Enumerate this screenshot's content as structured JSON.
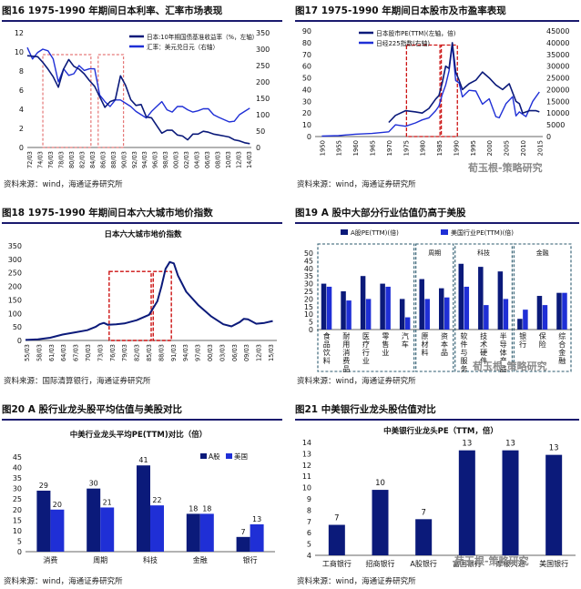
{
  "colors": {
    "navy": "#0b1a7a",
    "blue": "#1f2fd6",
    "pink": "#e05a5a",
    "red": "#cc1111",
    "teal": "#2b5a6e",
    "title": "#1a1a6e"
  },
  "watermark": "荀玉根-策略研究",
  "chart_data": [
    {
      "id": "fig16",
      "type": "line",
      "title": "图16   1975-1990 年期间日本利率、汇率市场表现",
      "source": "资料来源：wind，海通证券研究所",
      "legend": [
        "日本:10年期国债基准收益率（%，左轴）",
        "汇率：美元兑日元（右轴）"
      ],
      "x_ticks": [
        "72/03",
        "74/03",
        "76/03",
        "78/03",
        "80/03",
        "82/03",
        "84/03",
        "86/03",
        "88/03",
        "90/03",
        "92/03",
        "94/03",
        "96/03",
        "98/03",
        "00/03",
        "02/03",
        "04/03",
        "06/03",
        "08/03",
        "10/03",
        "12/03",
        "14/03"
      ],
      "ylim_left": [
        0,
        12
      ],
      "yticks_left": [
        "0",
        "2",
        "4",
        "6",
        "8",
        "10",
        "12"
      ],
      "ylim_right": [
        0,
        350
      ],
      "yticks_right": [
        "0",
        "50",
        "100",
        "150",
        "200",
        "250",
        "300",
        "350"
      ],
      "series": [
        {
          "name": "日本:10年期国债基准收益率",
          "axis": "left",
          "color": "#0b1a7a",
          "t": [
            1972,
            1974,
            1975,
            1976,
            1977,
            1978,
            1979,
            1980,
            1981,
            1982,
            1983,
            1984,
            1985,
            1986,
            1987,
            1988,
            1989,
            1990,
            1991,
            1992,
            1993,
            1994,
            1995,
            1996,
            1997,
            1998,
            1999,
            2000,
            2001,
            2002,
            2003,
            2004,
            2005,
            2006,
            2007,
            2008,
            2009,
            2010,
            2011,
            2012,
            2013,
            2014,
            2015
          ],
          "v": [
            9.6,
            9.5,
            8.9,
            8.2,
            7.4,
            6.3,
            8.2,
            9.2,
            8.5,
            8.2,
            7.7,
            7.0,
            6.4,
            5.3,
            4.2,
            4.8,
            5.0,
            7.5,
            6.5,
            5.0,
            4.4,
            4.5,
            3.2,
            3.1,
            2.3,
            1.5,
            1.8,
            1.8,
            1.3,
            1.2,
            0.8,
            1.4,
            1.4,
            1.7,
            1.6,
            1.4,
            1.3,
            1.2,
            1.1,
            0.8,
            0.7,
            0.5,
            0.4
          ]
        },
        {
          "name": "汇率：美元兑日元",
          "axis": "right",
          "color": "#1f2fd6",
          "t": [
            1972,
            1973,
            1974,
            1975,
            1976,
            1977,
            1978,
            1979,
            1980,
            1981,
            1982,
            1983,
            1984,
            1985,
            1986,
            1987,
            1988,
            1989,
            1990,
            1991,
            1992,
            1993,
            1994,
            1995,
            1996,
            1997,
            1998,
            1999,
            2000,
            2001,
            2002,
            2003,
            2004,
            2005,
            2006,
            2007,
            2008,
            2009,
            2010,
            2011,
            2012,
            2013,
            2014,
            2015
          ],
          "v": [
            305,
            270,
            290,
            300,
            295,
            270,
            200,
            240,
            220,
            225,
            250,
            235,
            240,
            240,
            160,
            140,
            125,
            145,
            145,
            135,
            125,
            110,
            100,
            90,
            110,
            125,
            140,
            115,
            108,
            125,
            125,
            115,
            108,
            112,
            118,
            118,
            100,
            92,
            85,
            78,
            80,
            100,
            110,
            120
          ]
        }
      ],
      "highlight": "1975-1984, 1986-1990"
    },
    {
      "id": "fig17",
      "type": "line",
      "title": "图17   1975-1990 年期间日本股市及市盈率表现",
      "source": "资料来源：wind，海通证券研究所",
      "legend": [
        "日本股市PE(TTM)(左轴，倍)",
        "日经225指数(右轴)"
      ],
      "x_ticks": [
        "1950",
        "1955",
        "1960",
        "1965",
        "1970",
        "1975",
        "1980",
        "1985",
        "1990",
        "1995",
        "2000",
        "2005",
        "2010",
        "2015"
      ],
      "ylim_left": [
        0,
        90
      ],
      "yticks_left": [
        "0",
        "10",
        "20",
        "30",
        "40",
        "50",
        "60",
        "70",
        "80",
        "90"
      ],
      "ylim_right": [
        0,
        45000
      ],
      "yticks_right": [
        "0",
        "5000",
        "10000",
        "15000",
        "20000",
        "25000",
        "30000",
        "35000",
        "40000",
        "45000"
      ],
      "series": [
        {
          "name": "日本股市PE(TTM)",
          "axis": "left",
          "color": "#0b1a7a",
          "t": [
            1970,
            1972,
            1975,
            1978,
            1980,
            1982,
            1984,
            1985,
            1986,
            1987,
            1988,
            1989,
            1990,
            1991,
            1992,
            1994,
            1996,
            1998,
            2000,
            2002,
            2004,
            2006,
            2008,
            2009,
            2010,
            2012,
            2014,
            2015
          ],
          "v": [
            12,
            18,
            22,
            21,
            20,
            24,
            32,
            35,
            46,
            60,
            58,
            80,
            55,
            48,
            40,
            45,
            48,
            55,
            50,
            44,
            40,
            45,
            30,
            28,
            20,
            22,
            22,
            21
          ]
        },
        {
          "name": "日经225指数",
          "axis": "right",
          "color": "#1f2fd6",
          "t": [
            1950,
            1955,
            1960,
            1965,
            1970,
            1972,
            1975,
            1978,
            1980,
            1982,
            1984,
            1985,
            1986,
            1987,
            1988,
            1989,
            1990,
            1991,
            1992,
            1994,
            1996,
            1998,
            2000,
            2002,
            2003,
            2005,
            2007,
            2008,
            2009,
            2011,
            2013,
            2015
          ],
          "v": [
            200,
            400,
            1000,
            1300,
            2000,
            5000,
            4400,
            5800,
            7100,
            8000,
            11000,
            13000,
            18000,
            22000,
            28000,
            38900,
            23800,
            22900,
            16900,
            19700,
            19400,
            13800,
            16100,
            8500,
            8000,
            14000,
            17000,
            8800,
            10500,
            8500,
            15000,
            19000
          ]
        }
      ],
      "highlight": "1975-1985, 1985-1990"
    },
    {
      "id": "fig18",
      "type": "line",
      "title": "图18  1975-1990 年期间日本六大城市地价指数",
      "subtitle": "日本六大城市地价指数",
      "source": "资料来源：国际清算银行，海通证券研究所",
      "x_ticks": [
        "55/03",
        "58/03",
        "61/03",
        "64/03",
        "67/03",
        "70/03",
        "73/03",
        "76/03",
        "79/03",
        "82/03",
        "85/03",
        "88/03",
        "91/03",
        "94/03",
        "97/03",
        "00/03",
        "03/03",
        "06/03",
        "09/03",
        "12/03",
        "15/03"
      ],
      "ylim": [
        0,
        350
      ],
      "yticks": [
        "0",
        "50",
        "100",
        "150",
        "200",
        "250",
        "300",
        "350"
      ],
      "series": [
        {
          "name": "日本六大城市地价指数",
          "color": "#0b1a7a",
          "t": [
            1955,
            1958,
            1961,
            1964,
            1967,
            1970,
            1972,
            1973,
            1974,
            1975,
            1977,
            1979,
            1982,
            1985,
            1987,
            1988,
            1989,
            1990,
            1991,
            1992,
            1994,
            1997,
            2000,
            2003,
            2005,
            2007,
            2008,
            2009,
            2011,
            2013,
            2015
          ],
          "v": [
            2,
            4,
            10,
            22,
            30,
            38,
            50,
            60,
            65,
            58,
            60,
            63,
            75,
            95,
            145,
            200,
            265,
            290,
            285,
            240,
            180,
            130,
            90,
            60,
            52,
            68,
            80,
            78,
            62,
            65,
            72
          ]
        }
      ],
      "highlight": "1975-1985, 1985-1990"
    },
    {
      "id": "fig19",
      "type": "bar",
      "title": "图19   A 股中大部分行业估值仍高于美股",
      "source": "资料来源：wind，海通证券研究所",
      "legend": [
        "A股PE(TTM)(倍)",
        "美国行业PE(TTM)(倍)"
      ],
      "categories": [
        "食品饮料",
        "耐用消费品",
        "医疗行业",
        "零售业",
        "汽车",
        "原材料",
        "资本品",
        "软件与服务",
        "技术硬件",
        "半导体产品",
        "银行",
        "保险",
        "综合金融"
      ],
      "groups": [
        "",
        "周期",
        "科技",
        "金融"
      ],
      "series": [
        {
          "name": "A股PE(TTM)",
          "color": "#0b1a7a",
          "values": [
            30,
            25,
            35,
            30,
            20,
            33,
            27,
            43,
            41,
            38,
            7,
            22,
            24
          ]
        },
        {
          "name": "美国行业PE(TTM)",
          "color": "#1f2fd6",
          "values": [
            28,
            19,
            20,
            28,
            8,
            20,
            21,
            28,
            16,
            20,
            13,
            16,
            24
          ]
        }
      ],
      "ylim": [
        0,
        50
      ],
      "yticks": [
        "0",
        "5",
        "10",
        "15",
        "20",
        "25",
        "30",
        "35",
        "40",
        "45",
        "50"
      ]
    },
    {
      "id": "fig20",
      "type": "bar",
      "title": "图20   A 股行业龙头股平均估值与美股对比",
      "subtitle": "中美行业龙头平均PE(TTM)对比（倍）",
      "source": "资料来源：wind，海通证券研究所",
      "legend": [
        "A股",
        "美国"
      ],
      "categories": [
        "消费",
        "周期",
        "科技",
        "金融",
        "银行"
      ],
      "series": [
        {
          "name": "A股",
          "color": "#0b1a7a",
          "values": [
            29,
            30,
            41,
            18,
            7
          ]
        },
        {
          "name": "美国",
          "color": "#1f2fd6",
          "values": [
            20,
            21,
            22,
            18,
            13
          ]
        }
      ],
      "ylim": [
        0,
        45
      ],
      "yticks": [
        "0",
        "5",
        "10",
        "15",
        "20",
        "25",
        "30",
        "35",
        "40",
        "45"
      ]
    },
    {
      "id": "fig21",
      "type": "bar",
      "title": "图21   中美银行业龙头股估值对比",
      "subtitle": "中美银行业龙头PE（TTM，倍）",
      "source": "资料来源：wind，海通证券研究所",
      "categories": [
        "工商银行",
        "招商银行",
        "A股银行",
        "富国银行",
        "摩根大通",
        "美国银行"
      ],
      "values": [
        6.7,
        9.8,
        7.2,
        13.3,
        13.3,
        12.9
      ],
      "labels": [
        "7",
        "10",
        "7",
        "13",
        "13",
        "13"
      ],
      "ylim": [
        4,
        14
      ],
      "yticks": [
        "4",
        "5",
        "6",
        "7",
        "8",
        "9",
        "10",
        "11",
        "12",
        "13",
        "14"
      ]
    }
  ]
}
